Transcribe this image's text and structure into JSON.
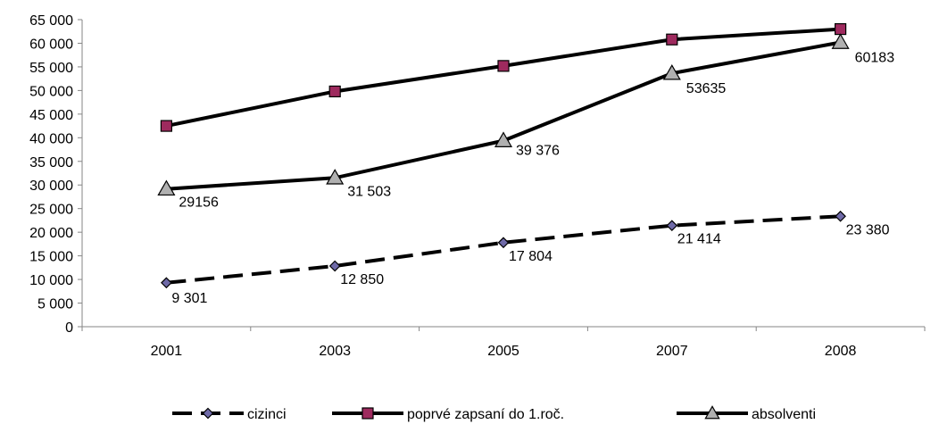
{
  "chart_data": {
    "type": "line",
    "categories": [
      "2001",
      "2003",
      "2005",
      "2007",
      "2008"
    ],
    "ylim": [
      0,
      65000
    ],
    "y_tick_step": 5000,
    "y_tick_labels": [
      "0",
      "5 000",
      "10 000",
      "15 000",
      "20 000",
      "25 000",
      "30 000",
      "35 000",
      "40 000",
      "45 000",
      "50 000",
      "55 000",
      "60 000",
      "65 000"
    ],
    "grid": false,
    "legend_position": "bottom",
    "series": [
      {
        "name": "cizinci",
        "values": [
          9301,
          12850,
          17804,
          21414,
          23380
        ],
        "labels": [
          "9 301",
          "12 850",
          "17 804",
          "21 414",
          "23 380"
        ],
        "marker": "diamond",
        "line_style": "dashed",
        "marker_color": "#6f6aa8"
      },
      {
        "name": "poprvé zapsaní do 1.roč.",
        "values": [
          42500,
          49800,
          55200,
          60800,
          63000
        ],
        "labels": [],
        "marker": "square",
        "line_style": "solid",
        "marker_color": "#9e2a5e"
      },
      {
        "name": "absolventi",
        "values": [
          29156,
          31503,
          39376,
          53635,
          60183
        ],
        "labels": [
          "29156",
          "31 503",
          "39 376",
          "53635",
          "60183"
        ],
        "marker": "triangle",
        "line_style": "solid",
        "marker_color": "#b0b0b0"
      }
    ]
  }
}
